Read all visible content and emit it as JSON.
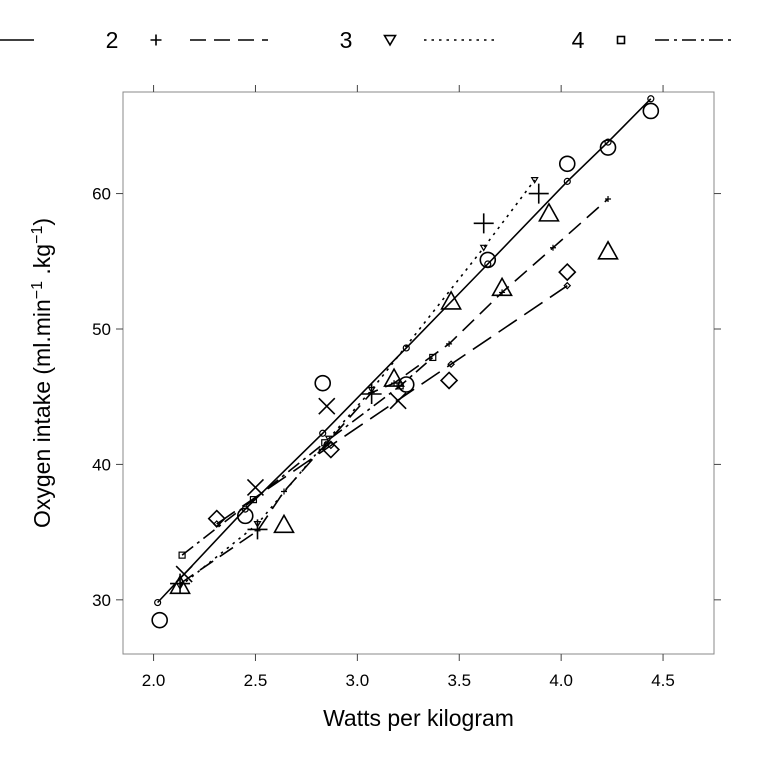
{
  "chart_data": {
    "type": "scatter",
    "title": "",
    "xlabel": "Watts per kilogram",
    "ylabel_main": "Oxygen intake (ml.min",
    "ylabel_exp1": "−1",
    "ylabel_mid": " .kg",
    "ylabel_exp2": "−1",
    "ylabel_close": ")",
    "xlim": [
      1.85,
      4.75
    ],
    "ylim": [
      26,
      67.5
    ],
    "xticks": [
      2.0,
      2.5,
      3.0,
      3.5,
      4.0,
      4.5
    ],
    "xtick_labels": [
      "2.0",
      "2.5",
      "3.0",
      "3.5",
      "4.0",
      "4.5"
    ],
    "yticks": [
      30,
      40,
      50,
      60
    ],
    "ytick_labels": [
      "30",
      "40",
      "50",
      "60"
    ],
    "grid": false,
    "legend_position": "top",
    "legend": [
      {
        "label": "",
        "marker": "circle",
        "line": "solid"
      },
      {
        "label": "2",
        "marker": "plus",
        "line": "dashed"
      },
      {
        "label": "3",
        "marker": "triangle-down",
        "line": "dotted"
      },
      {
        "label": "4",
        "marker": "square",
        "line": "dash-dot"
      }
    ],
    "observations": [
      {
        "symbol": "circle",
        "points": [
          [
            2.03,
            28.5
          ],
          [
            2.45,
            36.2
          ],
          [
            2.83,
            46.0
          ],
          [
            3.24,
            45.9
          ],
          [
            3.64,
            55.1
          ],
          [
            4.03,
            62.2
          ],
          [
            4.23,
            63.4
          ],
          [
            4.44,
            66.1
          ]
        ]
      },
      {
        "symbol": "triangle",
        "points": [
          [
            2.13,
            31.0
          ],
          [
            2.64,
            35.5
          ],
          [
            3.18,
            46.3
          ],
          [
            3.46,
            52.0
          ],
          [
            3.71,
            53.0
          ],
          [
            3.94,
            58.5
          ],
          [
            4.23,
            55.7
          ]
        ]
      },
      {
        "symbol": "plus",
        "points": [
          [
            2.13,
            31.2
          ],
          [
            2.51,
            35.2
          ],
          [
            3.07,
            45.2
          ],
          [
            3.62,
            57.8
          ],
          [
            3.89,
            60.0
          ]
        ]
      },
      {
        "symbol": "cross",
        "points": [
          [
            2.15,
            31.9
          ],
          [
            2.5,
            38.3
          ],
          [
            2.85,
            44.3
          ],
          [
            3.2,
            44.7
          ]
        ]
      },
      {
        "symbol": "diamond",
        "points": [
          [
            2.31,
            36.0
          ],
          [
            2.87,
            41.1
          ],
          [
            3.45,
            46.2
          ],
          [
            4.03,
            54.2
          ]
        ]
      }
    ],
    "fitted_lines": [
      {
        "style": "solid",
        "marker": "circle",
        "points": [
          [
            2.02,
            29.8
          ],
          [
            2.45,
            36.7
          ],
          [
            2.83,
            42.3
          ],
          [
            3.24,
            48.6
          ],
          [
            3.64,
            54.8
          ],
          [
            4.03,
            60.9
          ],
          [
            4.23,
            63.8
          ],
          [
            4.44,
            67.0
          ]
        ]
      },
      {
        "style": "dashed",
        "marker": "plus",
        "points": [
          [
            2.13,
            31.2
          ],
          [
            2.51,
            35.1
          ],
          [
            2.64,
            38.0
          ],
          [
            3.07,
            45.3
          ],
          [
            3.18,
            46.0
          ],
          [
            3.45,
            48.9
          ],
          [
            3.71,
            52.7
          ],
          [
            3.96,
            56.0
          ],
          [
            4.23,
            59.6
          ]
        ]
      },
      {
        "style": "dotted",
        "marker": "triangle-down",
        "points": [
          [
            2.13,
            31.0
          ],
          [
            2.51,
            35.6
          ],
          [
            2.86,
            41.9
          ],
          [
            3.07,
            45.5
          ],
          [
            3.62,
            56.0
          ],
          [
            3.87,
            61.0
          ]
        ]
      },
      {
        "style": "dash-dot",
        "marker": "square",
        "points": [
          [
            2.14,
            33.3
          ],
          [
            2.49,
            37.4
          ],
          [
            2.84,
            41.6
          ],
          [
            3.21,
            45.8
          ],
          [
            3.37,
            47.9
          ]
        ]
      },
      {
        "style": "long-dash",
        "marker": "diamond",
        "points": [
          [
            2.31,
            35.6
          ],
          [
            2.87,
            41.4
          ],
          [
            3.46,
            47.4
          ],
          [
            4.03,
            53.2
          ]
        ]
      }
    ]
  }
}
